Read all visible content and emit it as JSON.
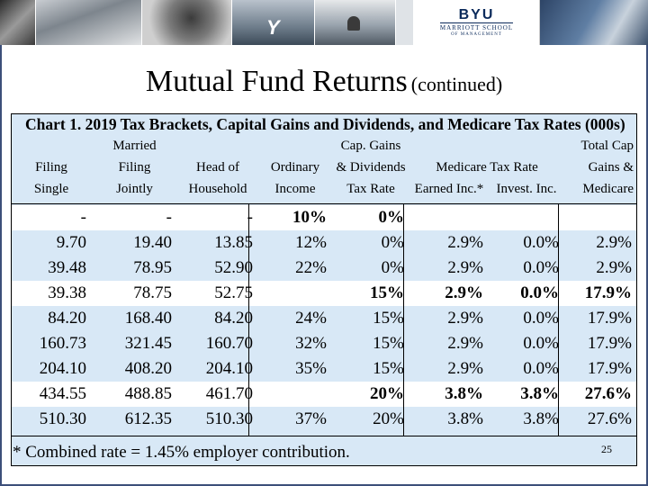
{
  "slide": {
    "title_main": "Mutual Fund Returns",
    "title_sub": "(continued)",
    "page_number": "25"
  },
  "logo": {
    "name": "BYU",
    "school": "MARRIOTT SCHOOL",
    "sub": "OF MANAGEMENT"
  },
  "chart_title": "Chart 1. 2019 Tax Brackets, Capital Gains and Dividends, and Medicare Tax Rates (000s)",
  "headers": {
    "filing_single": [
      "Filing",
      "Single"
    ],
    "married": [
      "Married",
      "Filing",
      "Jointly"
    ],
    "head_household": [
      "Head of",
      "Household"
    ],
    "ordinary_income": [
      "Ordinary",
      "Income"
    ],
    "cap_gains": [
      "Cap. Gains",
      "& Dividends",
      "Tax Rate"
    ],
    "medicare": "Medicare Tax Rate",
    "earned": "Earned Inc.*",
    "invest": "Invest. Inc.",
    "total": [
      "Total Cap",
      "Gains &",
      "Medicare"
    ]
  },
  "rows": [
    {
      "cells": [
        "-",
        "-",
        "-",
        "10%",
        "0%",
        "",
        "",
        ""
      ],
      "style": "white",
      "bold_cols": [
        3,
        4
      ]
    },
    {
      "cells": [
        "9.70",
        "19.40",
        "13.85",
        "12%",
        "0%",
        "2.9%",
        "0.0%",
        "2.9%"
      ],
      "style": "body",
      "bold_cols": []
    },
    {
      "cells": [
        "39.48",
        "78.95",
        "52.90",
        "22%",
        "0%",
        "2.9%",
        "0.0%",
        "2.9%"
      ],
      "style": "body",
      "bold_cols": []
    },
    {
      "cells": [
        "39.38",
        "78.75",
        "52.75",
        "",
        "15%",
        "2.9%",
        "0.0%",
        "17.9%"
      ],
      "style": "white",
      "bold_cols": [
        4,
        5,
        6,
        7
      ]
    },
    {
      "cells": [
        "84.20",
        "168.40",
        "84.20",
        "24%",
        "15%",
        "2.9%",
        "0.0%",
        "17.9%"
      ],
      "style": "body",
      "bold_cols": []
    },
    {
      "cells": [
        "160.73",
        "321.45",
        "160.70",
        "32%",
        "15%",
        "2.9%",
        "0.0%",
        "17.9%"
      ],
      "style": "body",
      "bold_cols": []
    },
    {
      "cells": [
        "204.10",
        "408.20",
        "204.10",
        "35%",
        "15%",
        "2.9%",
        "0.0%",
        "17.9%"
      ],
      "style": "body",
      "bold_cols": []
    },
    {
      "cells": [
        "434.55",
        "488.85",
        "461.70",
        "",
        "20%",
        "3.8%",
        "3.8%",
        "27.6%"
      ],
      "style": "white",
      "bold_cols": [
        4,
        5,
        6,
        7
      ]
    },
    {
      "cells": [
        "510.30",
        "612.35",
        "510.30",
        "37%",
        "20%",
        "3.8%",
        "3.8%",
        "27.6%"
      ],
      "style": "body",
      "bold_cols": []
    }
  ],
  "footnote": "* Combined rate = 1.45% employer contribution."
}
